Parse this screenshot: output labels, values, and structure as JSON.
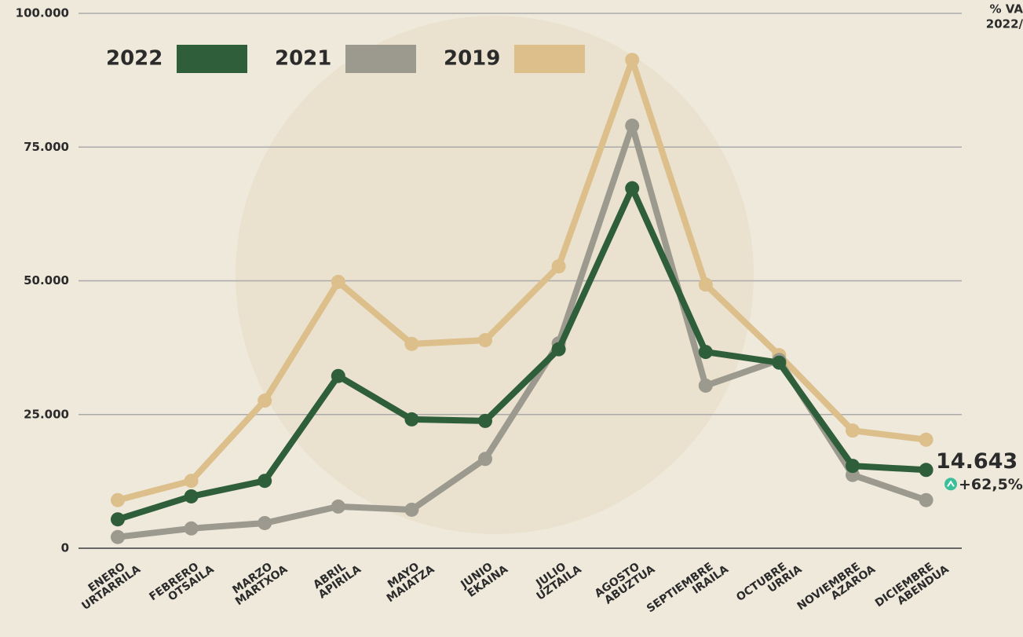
{
  "chart_data": {
    "type": "line",
    "categories": [
      [
        "ENERO",
        "URTARRILA"
      ],
      [
        "FEBRERO",
        "OTSAILA"
      ],
      [
        "MARZO",
        "MARTXOA"
      ],
      [
        "ABRIL",
        "APIRILA"
      ],
      [
        "MAYO",
        "MAIATZA"
      ],
      [
        "JUNIO",
        "EKAINA"
      ],
      [
        "JULIO",
        "UZTAILA"
      ],
      [
        "AGOSTO",
        "ABUZTUA"
      ],
      [
        "SEPTIEMBRE",
        "IRAILA"
      ],
      [
        "OCTUBRE",
        "URRIA"
      ],
      [
        "NOVIEMBRE",
        "AZAROA"
      ],
      [
        "DICIEMBRE",
        "ABENDUA"
      ]
    ],
    "series": [
      {
        "name": "2022",
        "color": "#2f5e3b",
        "values": [
          5400,
          9700,
          12600,
          32200,
          24100,
          23800,
          37200,
          67300,
          36700,
          34700,
          15400,
          14643
        ]
      },
      {
        "name": "2021",
        "color": "#9c9a8e",
        "values": [
          2100,
          3700,
          4700,
          7800,
          7200,
          16700,
          38300,
          79000,
          30400,
          35200,
          13700,
          9000
        ]
      },
      {
        "name": "2019",
        "color": "#dcbf8a",
        "values": [
          9000,
          12600,
          27600,
          49800,
          38200,
          38900,
          52700,
          91300,
          49300,
          36100,
          22000,
          20300
        ]
      }
    ],
    "ylim": [
      0,
      100000
    ],
    "yticks": [
      {
        "value": 0,
        "label": "0"
      },
      {
        "value": 25000,
        "label": "25.000"
      },
      {
        "value": 50000,
        "label": "50.000"
      },
      {
        "value": 75000,
        "label": "75.000"
      },
      {
        "value": 100000,
        "label": "100.000"
      }
    ],
    "grid": true,
    "annotations": [
      "14.643",
      "+62,5%"
    ],
    "corner_note": [
      "% VA",
      "2022/"
    ]
  }
}
